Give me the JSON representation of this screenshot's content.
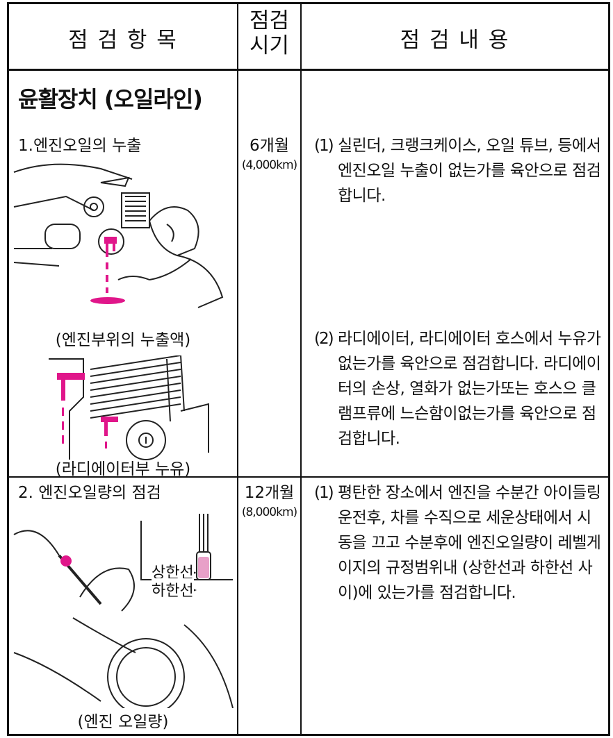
{
  "header": {
    "item": "점 검 항 목",
    "period": [
      "점검",
      "시기"
    ],
    "content": "점 검 내 용"
  },
  "rows": [
    {
      "section": "윤활장치 (오일라인)",
      "item": "1.엔진오일의 누출",
      "period": "6개월",
      "distance": "(4,000km)",
      "contents": [
        {
          "marker": "(1)",
          "text": "실린더, 크랭크케이스, 오일 튜브, 등에서 엔진오일 누출이 없는가를 육안으로 점검합니다."
        },
        {
          "marker": "(2)",
          "text": "라디에이터, 라디에이터 호스에서 누유가없는가를 육안으로 점검합니다. 라디에이터의 손상, 열화가 없는가또는 호스으 클램프류에 느슨함이없는가를 육안으로 점검합니다."
        }
      ],
      "captions": [
        "(엔진부위의 누출액)",
        "(라디에이터부 누유)"
      ]
    },
    {
      "item": "2. 엔진오일량의 점검",
      "period": "12개월",
      "distance": "(8,000km)",
      "contents": [
        {
          "marker": "(1)",
          "text": "평탄한 장소에서 엔진을 수분간 아이들링 운전후, 차를 수직으로 세운상태에서 시동을 끄고 수분후에 엔진오일량이 레벨게이지의 규정범위내 (상한선과 하한선 사이)에 있는가를 점검합니다."
        }
      ],
      "labels": [
        "상한선",
        "하한선"
      ],
      "captions": [
        "(엔진 오일량)"
      ]
    }
  ]
}
